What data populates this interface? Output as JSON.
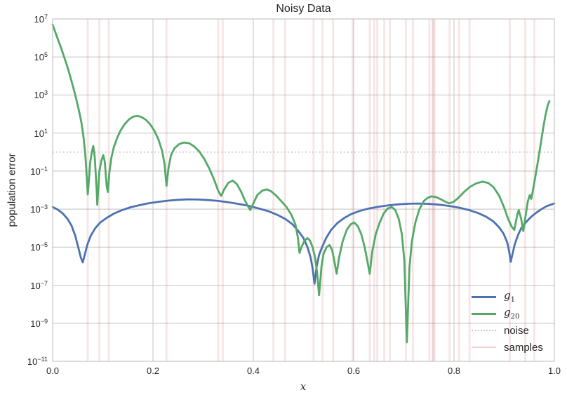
{
  "figure": {
    "title": "Noisy Data",
    "x_label": "x",
    "y_label": "population error"
  },
  "axes": {
    "x_tick_labels": [
      "0.0",
      "0.2",
      "0.4",
      "0.6",
      "0.8",
      "1.0"
    ],
    "x_tick_values": [
      0.0,
      0.2,
      0.4,
      0.6,
      0.8,
      1.0
    ],
    "y_tick_exponents": [
      7,
      5,
      3,
      1,
      -1,
      -3,
      -5,
      -7,
      -9,
      -11
    ],
    "grid": true
  },
  "legend": {
    "position": "lower right",
    "items": [
      {
        "id": "g1",
        "label_base": "g",
        "label_sub": "1",
        "swatch": "solid",
        "color": "#4C72B0",
        "thickness": 3
      },
      {
        "id": "g20",
        "label_base": "g",
        "label_sub": "20",
        "swatch": "solid",
        "color": "#55A868",
        "thickness": 3
      },
      {
        "id": "noise",
        "label": "noise",
        "swatch": "dotted",
        "color": "#c8c8c8",
        "thickness": 2
      },
      {
        "id": "samples",
        "label": "samples",
        "swatch": "solid",
        "color": "#f2cfd0",
        "thickness": 2
      }
    ]
  },
  "colors": {
    "g1": "#4C72B0",
    "g20": "#55A868",
    "noise_line": "#c8c8c8",
    "sample_line_rgba": "rgba(196,78,82,0.15)",
    "grid": "#cccccc",
    "spine": "#c4c4c4",
    "text": "#262626"
  },
  "chart_data": {
    "type": "line",
    "title": "Noisy Data",
    "xlabel": "x",
    "ylabel": "population error",
    "y_scale": "log",
    "xlim": [
      0.0,
      1.0
    ],
    "ylim": [
      1e-11,
      10000000.0
    ],
    "grid": true,
    "legend_position": "lower right",
    "noise_level": 1.0,
    "samples_x": [
      0.07,
      0.093,
      0.112,
      0.227,
      0.33,
      0.339,
      0.44,
      0.463,
      0.52,
      0.538,
      0.559,
      0.598,
      0.632,
      0.641,
      0.647,
      0.661,
      0.672,
      0.704,
      0.718,
      0.751,
      0.757,
      0.759,
      0.761,
      0.791,
      0.81,
      0.831,
      0.911,
      0.942,
      0.96
    ],
    "series": [
      {
        "name": "g1",
        "color": "#4C72B0",
        "points": [
          [
            0.0,
            0.0013
          ],
          [
            0.01,
            0.00095
          ],
          [
            0.02,
            0.0006
          ],
          [
            0.03,
            0.0003
          ],
          [
            0.038,
            0.00013
          ],
          [
            0.045,
            4e-05
          ],
          [
            0.051,
            1e-05
          ],
          [
            0.056,
            3e-06
          ],
          [
            0.06,
            1.6e-06
          ],
          [
            0.064,
            4e-06
          ],
          [
            0.069,
            1.3e-05
          ],
          [
            0.076,
            4e-05
          ],
          [
            0.085,
            0.0001
          ],
          [
            0.095,
            0.0002
          ],
          [
            0.108,
            0.00035
          ],
          [
            0.122,
            0.00058
          ],
          [
            0.138,
            0.00088
          ],
          [
            0.155,
            0.00125
          ],
          [
            0.172,
            0.0016
          ],
          [
            0.19,
            0.002
          ],
          [
            0.21,
            0.0024
          ],
          [
            0.23,
            0.0028
          ],
          [
            0.25,
            0.0031
          ],
          [
            0.27,
            0.0033
          ],
          [
            0.29,
            0.0032
          ],
          [
            0.31,
            0.003
          ],
          [
            0.33,
            0.0027
          ],
          [
            0.35,
            0.0023
          ],
          [
            0.37,
            0.0019
          ],
          [
            0.39,
            0.0015
          ],
          [
            0.41,
            0.0011
          ],
          [
            0.43,
            0.00078
          ],
          [
            0.448,
            0.0005
          ],
          [
            0.464,
            0.0003
          ],
          [
            0.478,
            0.00016
          ],
          [
            0.49,
            7e-05
          ],
          [
            0.5,
            3e-05
          ],
          [
            0.508,
            1e-05
          ],
          [
            0.514,
            3e-06
          ],
          [
            0.518,
            8e-07
          ],
          [
            0.522,
            1.2e-07
          ],
          [
            0.526,
            9e-07
          ],
          [
            0.531,
            4e-06
          ],
          [
            0.537,
            1e-05
          ],
          [
            0.545,
            3e-05
          ],
          [
            0.555,
            8e-05
          ],
          [
            0.567,
            0.00018
          ],
          [
            0.58,
            0.00033
          ],
          [
            0.595,
            0.00055
          ],
          [
            0.612,
            0.0008
          ],
          [
            0.63,
            0.00108
          ],
          [
            0.65,
            0.00135
          ],
          [
            0.67,
            0.0016
          ],
          [
            0.69,
            0.0018
          ],
          [
            0.71,
            0.00192
          ],
          [
            0.73,
            0.00198
          ],
          [
            0.75,
            0.0019
          ],
          [
            0.77,
            0.00172
          ],
          [
            0.79,
            0.00148
          ],
          [
            0.81,
            0.0012
          ],
          [
            0.83,
            0.0009
          ],
          [
            0.848,
            0.00062
          ],
          [
            0.864,
            0.0004
          ],
          [
            0.878,
            0.00023
          ],
          [
            0.89,
            0.00011
          ],
          [
            0.899,
            5e-05
          ],
          [
            0.906,
            1.8e-05
          ],
          [
            0.91,
            6e-06
          ],
          [
            0.913,
            1.7e-06
          ],
          [
            0.917,
            5e-06
          ],
          [
            0.921,
            1.4e-05
          ],
          [
            0.927,
            4e-05
          ],
          [
            0.934,
            0.0001
          ],
          [
            0.943,
            0.0002
          ],
          [
            0.953,
            0.00038
          ],
          [
            0.963,
            0.00062
          ],
          [
            0.973,
            0.00095
          ],
          [
            0.984,
            0.0014
          ],
          [
            1.0,
            0.002
          ]
        ]
      },
      {
        "name": "g20",
        "color": "#55A868",
        "points": [
          [
            0.0,
            5000000
          ],
          [
            0.004,
            2500000
          ],
          [
            0.01,
            900000
          ],
          [
            0.016,
            350000
          ],
          [
            0.022,
            120000
          ],
          [
            0.028,
            40000
          ],
          [
            0.034,
            12000
          ],
          [
            0.04,
            3200
          ],
          [
            0.046,
            800
          ],
          [
            0.052,
            170
          ],
          [
            0.057,
            40
          ],
          [
            0.061,
            8
          ],
          [
            0.064,
            1.5
          ],
          [
            0.066,
            0.35
          ],
          [
            0.068,
            0.05
          ],
          [
            0.07,
            0.006
          ],
          [
            0.073,
            0.06
          ],
          [
            0.075,
            0.3
          ],
          [
            0.078,
            1.0
          ],
          [
            0.081,
            2.1
          ],
          [
            0.084,
            0.5
          ],
          [
            0.086,
            0.06
          ],
          [
            0.088,
            0.008
          ],
          [
            0.089,
            0.0017
          ],
          [
            0.091,
            0.012
          ],
          [
            0.093,
            0.09
          ],
          [
            0.097,
            0.35
          ],
          [
            0.101,
            0.7
          ],
          [
            0.104,
            0.3
          ],
          [
            0.106,
            0.06
          ],
          [
            0.108,
            0.015
          ],
          [
            0.11,
            0.008
          ],
          [
            0.113,
            0.08
          ],
          [
            0.117,
            0.5
          ],
          [
            0.122,
            1.8
          ],
          [
            0.128,
            5
          ],
          [
            0.135,
            13
          ],
          [
            0.143,
            28
          ],
          [
            0.152,
            52
          ],
          [
            0.16,
            72
          ],
          [
            0.168,
            80
          ],
          [
            0.176,
            72
          ],
          [
            0.185,
            52
          ],
          [
            0.194,
            30
          ],
          [
            0.203,
            13
          ],
          [
            0.211,
            4.5
          ],
          [
            0.218,
            1.2
          ],
          [
            0.223,
            0.25
          ],
          [
            0.227,
            0.017
          ],
          [
            0.231,
            0.15
          ],
          [
            0.236,
            0.7
          ],
          [
            0.243,
            1.6
          ],
          [
            0.252,
            2.6
          ],
          [
            0.262,
            3.2
          ],
          [
            0.272,
            2.9
          ],
          [
            0.282,
            2.0
          ],
          [
            0.292,
            1.1
          ],
          [
            0.302,
            0.45
          ],
          [
            0.312,
            0.14
          ],
          [
            0.322,
            0.035
          ],
          [
            0.33,
            0.009
          ],
          [
            0.336,
            0.005
          ],
          [
            0.342,
            0.011
          ],
          [
            0.35,
            0.024
          ],
          [
            0.359,
            0.032
          ],
          [
            0.367,
            0.021
          ],
          [
            0.375,
            0.009
          ],
          [
            0.383,
            0.003
          ],
          [
            0.39,
            0.0013
          ],
          [
            0.394,
            0.0009
          ],
          [
            0.4,
            0.002
          ],
          [
            0.408,
            0.0055
          ],
          [
            0.418,
            0.0095
          ],
          [
            0.427,
            0.011
          ],
          [
            0.436,
            0.0085
          ],
          [
            0.446,
            0.005
          ],
          [
            0.456,
            0.0026
          ],
          [
            0.466,
            0.0013
          ],
          [
            0.476,
            0.0005
          ],
          [
            0.484,
            0.00015
          ],
          [
            0.489,
            3e-05
          ],
          [
            0.492,
            5e-06
          ],
          [
            0.496,
            1e-05
          ],
          [
            0.502,
            2.2e-05
          ],
          [
            0.508,
            3e-05
          ],
          [
            0.513,
            2.2e-05
          ],
          [
            0.518,
            1e-05
          ],
          [
            0.523,
            3e-06
          ],
          [
            0.527,
            5e-07
          ],
          [
            0.531,
            3e-08
          ],
          [
            0.536,
            1e-06
          ],
          [
            0.54,
            4.5e-06
          ],
          [
            0.546,
            1e-05
          ],
          [
            0.552,
            1.3e-05
          ],
          [
            0.557,
            7e-06
          ],
          [
            0.561,
            2.2e-06
          ],
          [
            0.566,
            4e-07
          ],
          [
            0.571,
            3e-06
          ],
          [
            0.578,
            2e-05
          ],
          [
            0.586,
            8e-05
          ],
          [
            0.594,
            0.00016
          ],
          [
            0.601,
            0.0002
          ],
          [
            0.608,
            0.00013
          ],
          [
            0.615,
            5e-05
          ],
          [
            0.622,
            1e-05
          ],
          [
            0.628,
            1.5e-06
          ],
          [
            0.632,
            4e-07
          ],
          [
            0.637,
            6e-06
          ],
          [
            0.644,
            5e-05
          ],
          [
            0.652,
            0.0002
          ],
          [
            0.66,
            0.0006
          ],
          [
            0.668,
            0.0011
          ],
          [
            0.676,
            0.0013
          ],
          [
            0.683,
            0.0009
          ],
          [
            0.69,
            0.0003
          ],
          [
            0.696,
            5e-05
          ],
          [
            0.701,
            2e-06
          ],
          [
            0.706,
            1e-10
          ],
          [
            0.711,
            8e-07
          ],
          [
            0.716,
            2e-05
          ],
          [
            0.723,
            0.0002
          ],
          [
            0.731,
            0.001
          ],
          [
            0.74,
            0.0027
          ],
          [
            0.748,
            0.004
          ],
          [
            0.755,
            0.0047
          ],
          [
            0.763,
            0.0044
          ],
          [
            0.772,
            0.0035
          ],
          [
            0.781,
            0.0026
          ],
          [
            0.79,
            0.002
          ],
          [
            0.799,
            0.0024
          ],
          [
            0.809,
            0.004
          ],
          [
            0.82,
            0.008
          ],
          [
            0.832,
            0.015
          ],
          [
            0.845,
            0.023
          ],
          [
            0.857,
            0.028
          ],
          [
            0.868,
            0.024
          ],
          [
            0.879,
            0.014
          ],
          [
            0.89,
            0.005
          ],
          [
            0.9,
            0.0012
          ],
          [
            0.908,
            0.0003
          ],
          [
            0.915,
            0.00012
          ],
          [
            0.92,
            8e-05
          ],
          [
            0.926,
            0.0005
          ],
          [
            0.929,
            0.0009
          ],
          [
            0.934,
            0.0003
          ],
          [
            0.938,
            7e-05
          ],
          [
            0.943,
            0.0005
          ],
          [
            0.947,
            0.0025
          ],
          [
            0.951,
            0.0055
          ],
          [
            0.954,
            0.0035
          ],
          [
            0.957,
            0.009
          ],
          [
            0.962,
            0.05
          ],
          [
            0.967,
            0.3
          ],
          [
            0.972,
            2
          ],
          [
            0.977,
            14
          ],
          [
            0.982,
            80
          ],
          [
            0.987,
            300
          ],
          [
            0.99,
            480
          ]
        ]
      }
    ]
  }
}
